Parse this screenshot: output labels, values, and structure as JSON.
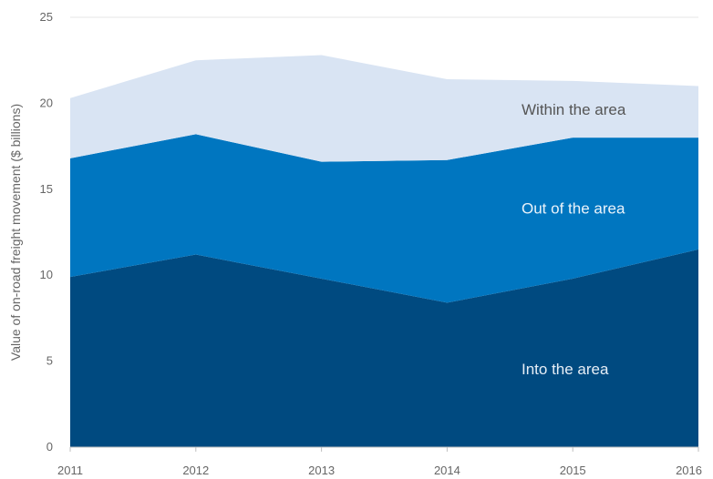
{
  "chart_data": {
    "type": "area",
    "stacked": true,
    "ylabel": "Value of on-road freight movement ($ billions)",
    "xlabel": "",
    "x": [
      "2011",
      "2012",
      "2013",
      "2014",
      "2015",
      "2016"
    ],
    "ylim": [
      0,
      25
    ],
    "yticks": [
      0,
      5,
      10,
      15,
      20,
      25
    ],
    "grid": true,
    "series": [
      {
        "name": "Into the area",
        "values": [
          9.9,
          11.2,
          9.8,
          8.4,
          9.8,
          11.5
        ],
        "color": "#004a80",
        "label_color": "#e6eef6"
      },
      {
        "name": "Out of the area",
        "values": [
          6.9,
          7.0,
          6.8,
          8.3,
          8.2,
          6.5
        ],
        "color": "#0076c0",
        "label_color": "#eaf3fa"
      },
      {
        "name": "Within the area",
        "values": [
          3.5,
          4.3,
          6.2,
          4.7,
          3.3,
          3.0
        ],
        "color": "#d9e4f3",
        "label_color": "#555555"
      }
    ]
  }
}
